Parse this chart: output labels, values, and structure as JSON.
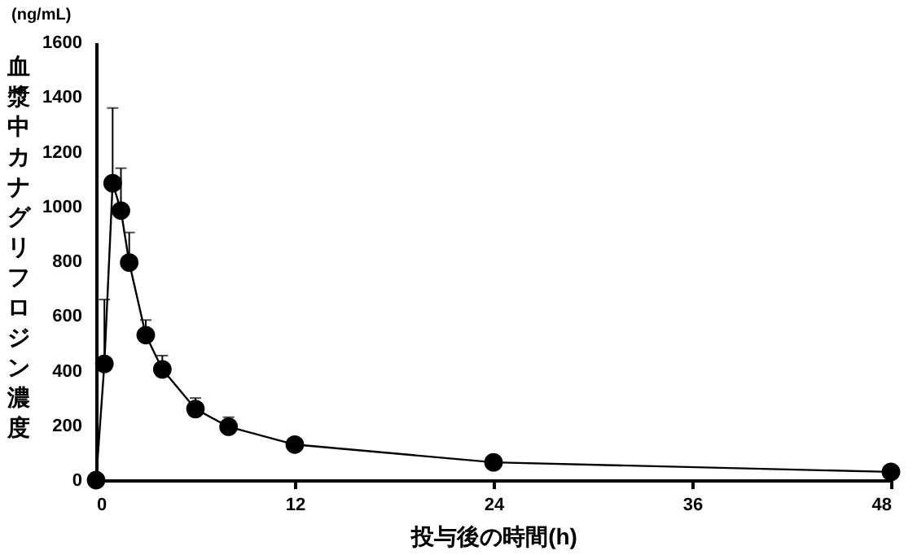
{
  "chart_data": {
    "type": "line",
    "xlabel": "投与後の時間(h)",
    "ylabel": "血漿中カナグリフロジン濃度",
    "annotations": [
      "(ng/mL)"
    ],
    "x": [
      0,
      0.5,
      1,
      1.5,
      2,
      3,
      4,
      6,
      8,
      12,
      24,
      48
    ],
    "series": [
      {
        "color": "#000000",
        "values": [
          0,
          425,
          1085,
          985,
          795,
          530,
          405,
          260,
          195,
          130,
          65,
          30
        ],
        "errors": [
          null,
          [
            425,
            660
          ],
          [
            1085,
            1360
          ],
          [
            985,
            1140
          ],
          [
            795,
            905
          ],
          [
            530,
            585
          ],
          [
            405,
            455
          ],
          [
            260,
            300
          ],
          [
            195,
            230
          ],
          [
            130,
            145
          ],
          [
            65,
            72
          ],
          [
            30,
            36
          ]
        ]
      }
    ],
    "xlim": [
      0,
      48
    ],
    "xticks": [
      0,
      12,
      24,
      36,
      48
    ],
    "ylim": [
      0,
      1600
    ],
    "yticks": [
      0,
      200,
      400,
      600,
      800,
      1000,
      1200,
      1400,
      1600
    ],
    "marker": "circle",
    "line_style": "solid",
    "grid": false
  }
}
